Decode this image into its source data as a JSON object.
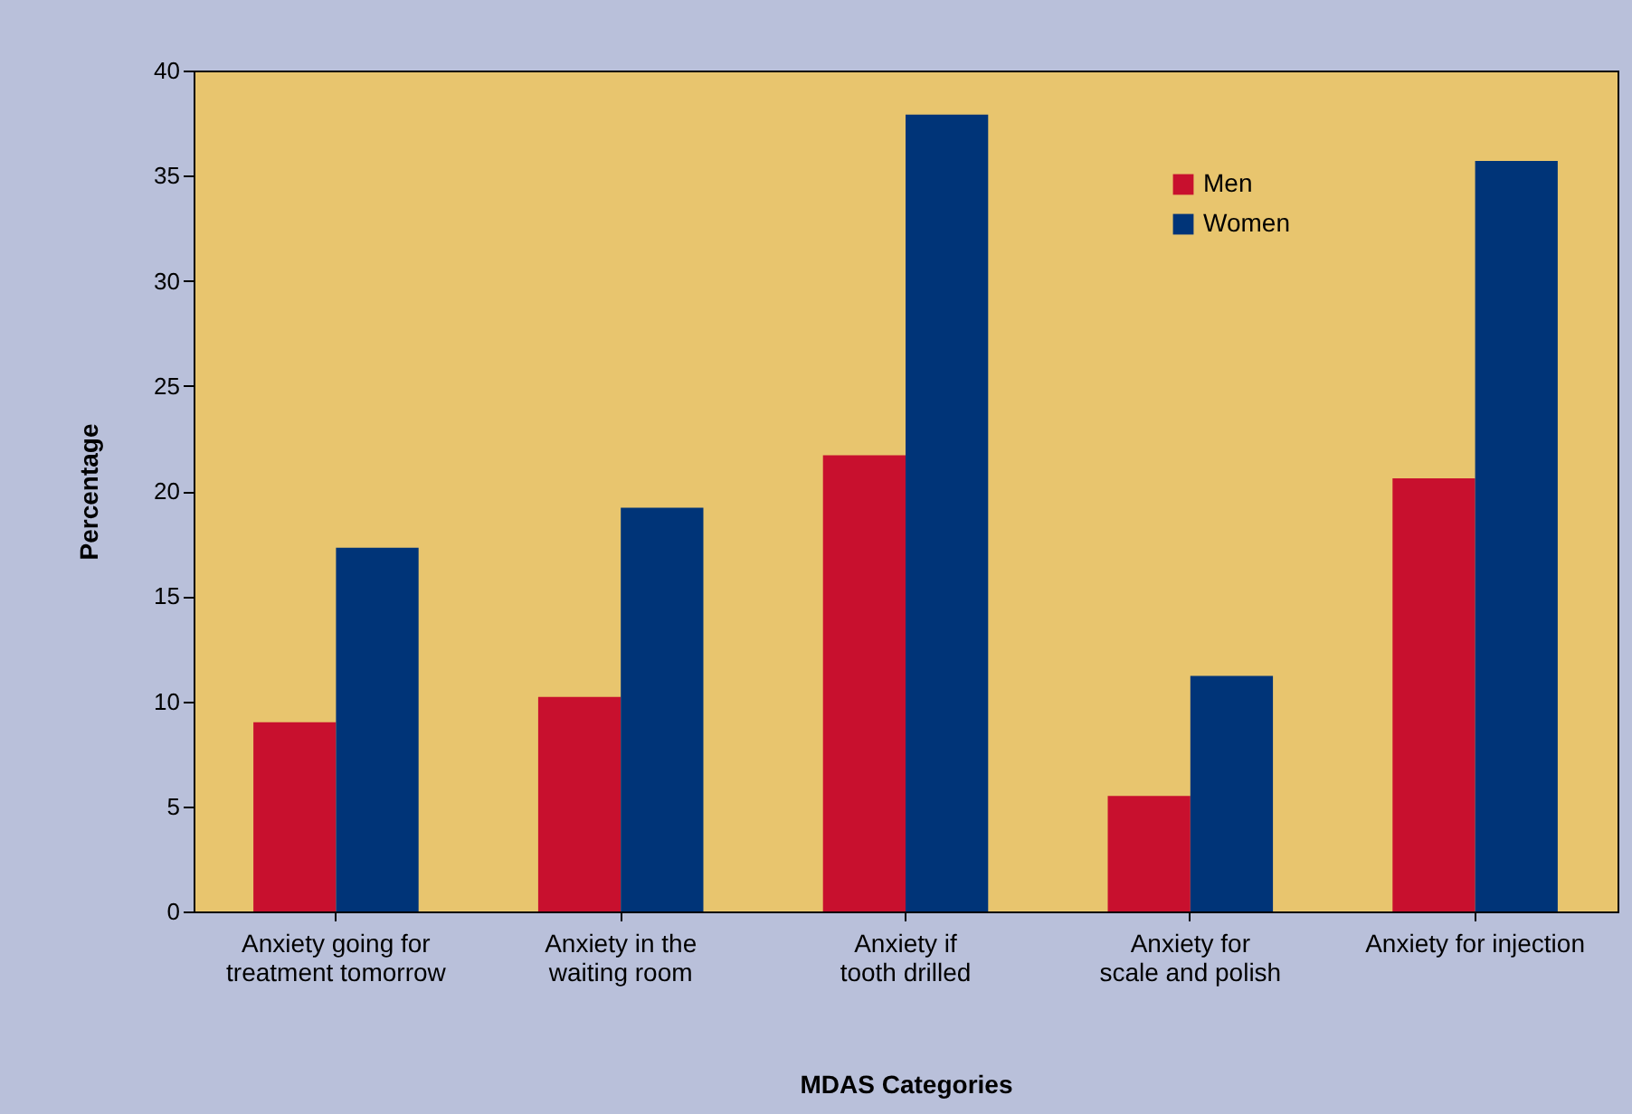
{
  "chart_data": {
    "type": "bar",
    "xlabel": "MDAS Categories",
    "ylabel": "Percentage",
    "categories": [
      "Anxiety going for treatment tomorrow",
      "Anxiety in the waiting room",
      "Anxiety if tooth drilled",
      "Anxiety for scale and polish",
      "Anxiety for injection"
    ],
    "series": [
      {
        "name": "Men",
        "color": "#c8102e",
        "values": [
          9.0,
          10.2,
          21.7,
          5.5,
          20.6
        ]
      },
      {
        "name": "Women",
        "color": "#003478",
        "values": [
          17.3,
          19.2,
          37.9,
          11.2,
          35.7
        ]
      }
    ],
    "ylim": [
      0,
      40
    ],
    "yticks": [
      0,
      5,
      10,
      15,
      20,
      25,
      30,
      35,
      40
    ],
    "grid": false,
    "legend": "top right"
  }
}
